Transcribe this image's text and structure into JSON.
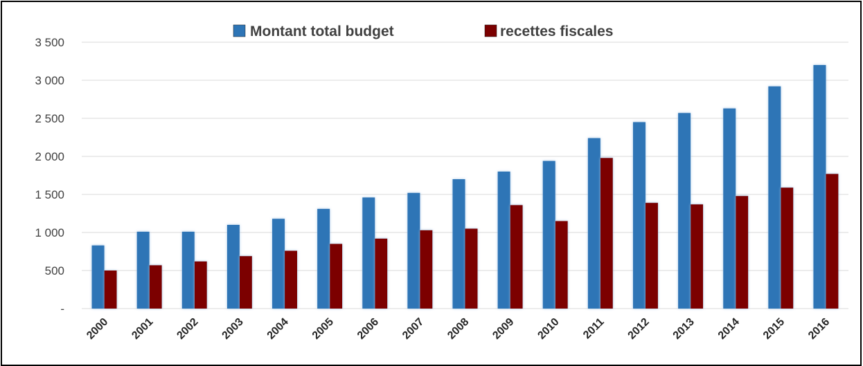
{
  "chart_data": {
    "type": "bar",
    "categories": [
      "2000",
      "2001",
      "2002",
      "2003",
      "2004",
      "2005",
      "2006",
      "2007",
      "2008",
      "2009",
      "2010",
      "2011",
      "2012",
      "2013",
      "2014",
      "2015",
      "2016"
    ],
    "series": [
      {
        "name": "Montant total budget",
        "color": "#2E75B6",
        "values": [
          830,
          1010,
          1010,
          1100,
          1180,
          1310,
          1460,
          1520,
          1700,
          1800,
          1940,
          2240,
          2450,
          2570,
          2630,
          2920,
          3200
        ]
      },
      {
        "name": "recettes fiscales",
        "color": "#7B0000",
        "values": [
          500,
          570,
          620,
          690,
          760,
          850,
          920,
          1030,
          1050,
          1360,
          1150,
          1980,
          1390,
          1370,
          1480,
          1590,
          1770
        ]
      }
    ],
    "yticks": [
      "-",
      "500",
      "1 000",
      "1 500",
      "2 000",
      "2 500",
      "3 000",
      "3 500"
    ],
    "ylim": [
      0,
      3500
    ],
    "grid": true,
    "legend_position": "top"
  }
}
